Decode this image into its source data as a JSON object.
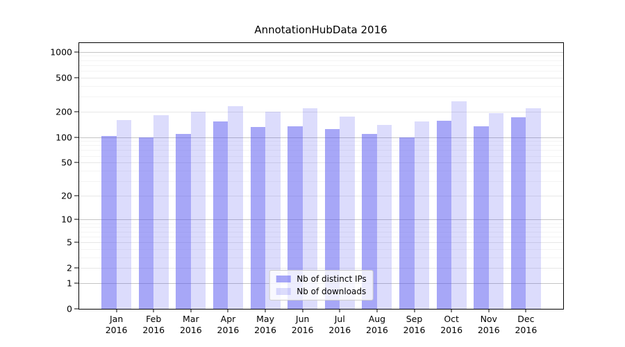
{
  "title": "AnnotationHubData 2016",
  "colors": {
    "ips_bar": "rgba(80,80,240,0.5)",
    "downloads_bar": "rgba(80,80,240,0.2)",
    "grid_major": "#c4c4c4",
    "grid_mid": "#e7e7e7",
    "grid_minor": "#f4f4f4",
    "axis": "#000000"
  },
  "legend": {
    "items": [
      {
        "label": "Nb of distinct IPs",
        "series": "ips"
      },
      {
        "label": "Nb of downloads",
        "series": "downloads"
      }
    ]
  },
  "x_axis": {
    "months": [
      {
        "m": "Jan",
        "y": "2016"
      },
      {
        "m": "Feb",
        "y": "2016"
      },
      {
        "m": "Mar",
        "y": "2016"
      },
      {
        "m": "Apr",
        "y": "2016"
      },
      {
        "m": "May",
        "y": "2016"
      },
      {
        "m": "Jun",
        "y": "2016"
      },
      {
        "m": "Jul",
        "y": "2016"
      },
      {
        "m": "Aug",
        "y": "2016"
      },
      {
        "m": "Sep",
        "y": "2016"
      },
      {
        "m": "Oct",
        "y": "2016"
      },
      {
        "m": "Nov",
        "y": "2016"
      },
      {
        "m": "Dec",
        "y": "2016"
      }
    ]
  },
  "chart_data": {
    "type": "bar",
    "title": "AnnotationHubData 2016",
    "categories": [
      "Jan 2016",
      "Feb 2016",
      "Mar 2016",
      "Apr 2016",
      "May 2016",
      "Jun 2016",
      "Jul 2016",
      "Aug 2016",
      "Sep 2016",
      "Oct 2016",
      "Nov 2016",
      "Dec 2016"
    ],
    "series": [
      {
        "name": "Nb of distinct IPs",
        "values": [
          103,
          100,
          110,
          153,
          132,
          135,
          125,
          108,
          100,
          157,
          133,
          170
        ]
      },
      {
        "name": "Nb of downloads",
        "values": [
          160,
          180,
          200,
          233,
          200,
          220,
          176,
          140,
          153,
          265,
          192,
          220
        ]
      }
    ],
    "xlabel": "",
    "ylabel": "",
    "yscale": "log1p",
    "ylim": [
      0,
      1265
    ],
    "yticks": [
      0,
      1,
      2,
      5,
      10,
      20,
      50,
      100,
      200,
      500,
      1000
    ],
    "y_gridlines": {
      "major": [
        1,
        10,
        100,
        1000
      ],
      "mid": [
        2,
        5,
        20,
        50,
        200,
        500
      ],
      "minor": [
        3,
        4,
        6,
        7,
        8,
        9,
        30,
        40,
        60,
        70,
        80,
        90,
        300,
        400,
        600,
        700,
        800,
        900
      ]
    },
    "grid": "on",
    "legend_position": "lower center",
    "bar_width_units": 0.4,
    "group_slots": 13
  }
}
